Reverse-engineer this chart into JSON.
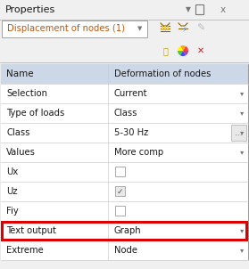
{
  "title": "Properties",
  "dropdown_label": "Displacement of nodes (1)",
  "table_rows": [
    {
      "name": "Name",
      "value": "Deformation of nodes",
      "header": true
    },
    {
      "name": "Selection",
      "value": "Current",
      "has_dropdown": true
    },
    {
      "name": "Type of loads",
      "value": "Class",
      "has_dropdown": true
    },
    {
      "name": "Class",
      "value": "5-30 Hz",
      "has_dropdown": true,
      "has_dots": true
    },
    {
      "name": "Values",
      "value": "More comp",
      "has_dropdown": true
    },
    {
      "name": "Ux",
      "value": "checkbox_empty"
    },
    {
      "name": "Uz",
      "value": "checkbox_checked"
    },
    {
      "name": "Fiy",
      "value": "checkbox_empty"
    },
    {
      "name": "Text output",
      "value": "Graph",
      "has_dropdown": true,
      "highlighted": true
    },
    {
      "name": "Extreme",
      "value": "Node",
      "has_dropdown": true
    }
  ],
  "bg_color": "#f0f0f0",
  "header_bg": "#ccd8e8",
  "table_border": "#999999",
  "white": "#ffffff",
  "highlight_color": "#dd0000",
  "text_color": "#1a1a1a",
  "orange_text": "#cc5500",
  "gray_text": "#666666",
  "row_line_color": "#cccccc",
  "dots_bg": "#e8e8e8",
  "col_split": 0.435,
  "figw": 2.79,
  "figh": 3.02,
  "dpi": 100
}
